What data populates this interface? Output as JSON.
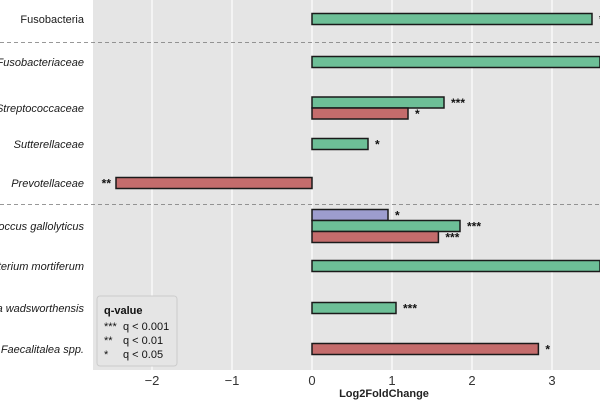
{
  "chart_data": {
    "type": "bar",
    "orientation": "horizontal",
    "xlabel": "Log2FoldChange",
    "xlim": [
      -2.95,
      3.6
    ],
    "xticks": [
      "−2",
      "−1",
      "0",
      "1",
      "2",
      "3"
    ],
    "xtick_values": [
      -2,
      -1,
      0,
      1,
      2,
      3
    ],
    "grid": true,
    "categories": [
      {
        "label": "Fusobacteria",
        "italic": false
      },
      {
        "label": "Fusobacteriaceae",
        "italic": true
      },
      {
        "label": "Streptococcaceae",
        "italic": true
      },
      {
        "label": "Sutterellaceae",
        "italic": true
      },
      {
        "label": "Prevotellaceae",
        "italic": true
      },
      {
        "label": "occus gallolyticus",
        "italic": true
      },
      {
        "label": "terium mortiferum",
        "italic": true
      },
      {
        "label": "a wadsworthensis",
        "italic": true
      },
      {
        "label": "Faecalitalea spp.",
        "italic": true
      }
    ],
    "bars": [
      {
        "category": 0,
        "color": "#6dbf97",
        "value": 3.5,
        "sig": "*"
      },
      {
        "category": 1,
        "color": "#6dbf97",
        "value": 3.6,
        "sig": ""
      },
      {
        "category": 2,
        "color": "#6dbf97",
        "value": 1.65,
        "sig": "***"
      },
      {
        "category": 2,
        "color": "#c46c6c",
        "value": 1.2,
        "sig": "*"
      },
      {
        "category": 3,
        "color": "#6dbf97",
        "value": 0.7,
        "sig": "*"
      },
      {
        "category": 4,
        "color": "#c46c6c",
        "value": -2.45,
        "sig": "**"
      },
      {
        "category": 5,
        "color": "#9d9dce",
        "value": 0.95,
        "sig": "*"
      },
      {
        "category": 5,
        "color": "#6dbf97",
        "value": 1.85,
        "sig": "***"
      },
      {
        "category": 5,
        "color": "#c46c6c",
        "value": 1.58,
        "sig": "***"
      },
      {
        "category": 6,
        "color": "#6dbf97",
        "value": 3.6,
        "sig": ""
      },
      {
        "category": 7,
        "color": "#6dbf97",
        "value": 1.05,
        "sig": "***"
      },
      {
        "category": 8,
        "color": "#c46c6c",
        "value": 2.83,
        "sig": "*"
      }
    ],
    "separators_after_category": [
      0,
      4
    ],
    "legend": {
      "title": "q-value",
      "placement": "bottom-left",
      "entries": [
        {
          "symbol": "***",
          "text": "q < 0.001"
        },
        {
          "symbol": "**",
          "text": "q < 0.01"
        },
        {
          "symbol": "*",
          "text": "q < 0.05"
        }
      ]
    }
  }
}
